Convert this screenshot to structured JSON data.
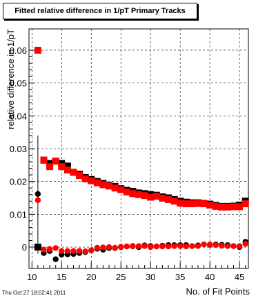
{
  "chart_data": {
    "type": "scatter",
    "title": "Fitted relative difference in 1/pT Primary Tracks",
    "xlabel": "No. of Fit Points",
    "ylabel": "relative difference in 1/pT",
    "xlim": [
      9.5,
      46.5
    ],
    "ylim": [
      -0.0065,
      0.0665
    ],
    "x_ticks": [
      10,
      15,
      20,
      25,
      30,
      35,
      40,
      45
    ],
    "y_ticks": [
      0,
      0.01,
      0.02,
      0.03,
      0.04,
      0.05,
      0.06
    ],
    "y_tick_labels": [
      "0",
      "0.01",
      "0.02",
      "0.03",
      "0.04",
      "0.05",
      "0.06"
    ],
    "grid": true,
    "series": [
      {
        "marker": "square",
        "color": "#000000",
        "x": [
          11,
          12,
          13,
          14,
          15,
          16,
          17,
          18,
          19,
          20,
          21,
          22,
          23,
          24,
          25,
          26,
          27,
          28,
          29,
          30,
          31,
          32,
          33,
          34,
          35,
          36,
          37,
          38,
          39,
          40,
          41,
          42,
          43,
          44,
          45,
          46
        ],
        "y": [
          0.0,
          0.0265,
          0.0255,
          0.0262,
          0.0255,
          0.0247,
          0.0228,
          0.0222,
          0.0212,
          0.0206,
          0.02,
          0.0194,
          0.0188,
          0.0185,
          0.0178,
          0.0173,
          0.017,
          0.0165,
          0.0163,
          0.016,
          0.0158,
          0.0153,
          0.015,
          0.0145,
          0.014,
          0.0137,
          0.0135,
          0.0135,
          0.0133,
          0.0131,
          0.0127,
          0.0124,
          0.0124,
          0.0125,
          0.0128,
          0.014
        ]
      },
      {
        "marker": "square",
        "color": "#ff0000",
        "x": [
          11,
          12,
          13,
          14,
          15,
          16,
          17,
          18,
          19,
          20,
          21,
          22,
          23,
          24,
          25,
          26,
          27,
          28,
          29,
          30,
          31,
          32,
          33,
          34,
          35,
          36,
          37,
          38,
          39,
          40,
          41,
          42,
          43,
          44,
          45,
          46
        ],
        "y": [
          0.06,
          0.0265,
          0.0245,
          0.0262,
          0.0245,
          0.0235,
          0.0228,
          0.0218,
          0.0208,
          0.0202,
          0.0196,
          0.019,
          0.0186,
          0.018,
          0.0175,
          0.0168,
          0.0163,
          0.016,
          0.0157,
          0.0152,
          0.0155,
          0.0149,
          0.0145,
          0.014,
          0.0134,
          0.0132,
          0.0132,
          0.0133,
          0.0132,
          0.0128,
          0.0124,
          0.0122,
          0.0122,
          0.0123,
          0.0123,
          0.0132
        ]
      },
      {
        "marker": "circle",
        "color": "#000000",
        "x": [
          11,
          12,
          13,
          14,
          15,
          16,
          17,
          18,
          19,
          20,
          21,
          22,
          23,
          24,
          25,
          26,
          27,
          28,
          29,
          30,
          31,
          32,
          33,
          34,
          35,
          36,
          37,
          38,
          39,
          40,
          41,
          42,
          43,
          44,
          45,
          46
        ],
        "y": [
          0.0162,
          -0.0018,
          -0.0012,
          -0.0037,
          -0.0023,
          -0.0022,
          -0.0021,
          -0.0018,
          -0.0015,
          -0.001,
          -0.0005,
          -0.0008,
          -0.0003,
          -0.0003,
          0.0,
          0.0002,
          0.0003,
          0.0,
          0.0005,
          0.0003,
          0.0002,
          0.0004,
          0.0006,
          0.0006,
          0.0006,
          0.0006,
          0.0003,
          0.0005,
          0.0008,
          0.0007,
          0.0008,
          0.0007,
          0.0006,
          0.0003,
          0.0,
          0.0016
        ]
      },
      {
        "marker": "circle",
        "color": "#ff0000",
        "x": [
          11,
          12,
          13,
          14,
          15,
          16,
          17,
          18,
          19,
          20,
          21,
          22,
          23,
          24,
          25,
          26,
          27,
          28,
          29,
          30,
          31,
          32,
          33,
          34,
          35,
          36,
          37,
          38,
          39,
          40,
          41,
          42,
          43,
          44,
          45,
          46
        ],
        "y": [
          0.0143,
          -0.0008,
          -0.0006,
          -0.0003,
          -0.0012,
          -0.0012,
          -0.0012,
          -0.0012,
          -0.0013,
          -0.001,
          -0.0002,
          -0.0001,
          0.0,
          -0.0002,
          0.0001,
          0.0002,
          0.0002,
          0.0003,
          0.0003,
          0.0,
          0.0002,
          0.0002,
          0.0002,
          0.0003,
          0.0003,
          0.0002,
          0.0003,
          0.0003,
          0.0008,
          0.0008,
          0.0006,
          0.0004,
          0.0003,
          0.0003,
          0.0003,
          0.001
        ]
      }
    ]
  },
  "timestamp": "Thu Oct 27 18:02:41 2011"
}
